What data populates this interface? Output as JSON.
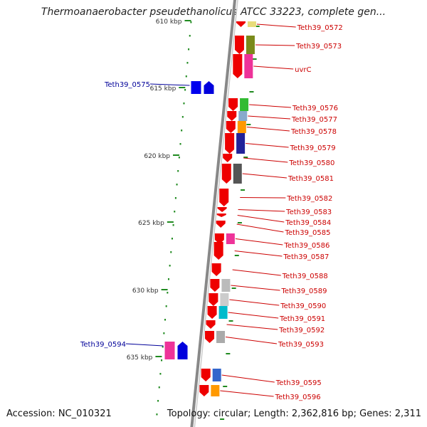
{
  "title": "Thermoanaerobacter pseudethanolicus ATCC 33223, complete gen...",
  "footer": {
    "accession": "Accession: NC_010321",
    "topology": "Topology: circular; Length: 2,362,816 bp; Genes: 2,311"
  },
  "colors": {
    "backbone": "#888888",
    "ruler_dots": "#1f8a1f",
    "forward_gene": "#ee0000",
    "reverse_gene": "#0000dd",
    "forward_label": "#cc0000",
    "reverse_label": "#000099",
    "ticks": "#333333"
  },
  "ruler_labels": [
    "610 kbp",
    "615 kbp",
    "620 kbp",
    "625 kbp",
    "630 kbp",
    "635 kbp"
  ],
  "forward_genes": [
    {
      "label": "Teth39_0572",
      "cog": "#e8dc7a"
    },
    {
      "label": "Teth39_0573",
      "cog": "#7a8a1a"
    },
    {
      "label": "uvrC",
      "cog": "#ee3399"
    },
    {
      "label": "Teth39_0576",
      "cog": "#33bb33"
    },
    {
      "label": "Teth39_0577",
      "cog": "#88aacc"
    },
    {
      "label": "Teth39_0578",
      "cog": "#ff9900"
    },
    {
      "label": "Teth39_0579",
      "cog": "#222299"
    },
    {
      "label": "Teth39_0580",
      "cog": "#ffffff"
    },
    {
      "label": "Teth39_0581",
      "cog": "#555555"
    },
    {
      "label": "Teth39_0582",
      "cog": "#ffffff"
    },
    {
      "label": "Teth39_0583",
      "cog": "#ffffff"
    },
    {
      "label": "Teth39_0584",
      "cog": "#ffffff"
    },
    {
      "label": "Teth39_0585",
      "cog": "#ffffff"
    },
    {
      "label": "Teth39_0586",
      "cog": "#ee3399"
    },
    {
      "label": "Teth39_0587",
      "cog": "#ffffff"
    },
    {
      "label": "Teth39_0588",
      "cog": "#ffffff"
    },
    {
      "label": "Teth39_0589",
      "cog": "#bbbbbb"
    },
    {
      "label": "Teth39_0590",
      "cog": "#cccccc"
    },
    {
      "label": "Teth39_0591",
      "cog": "#00bbcc"
    },
    {
      "label": "Teth39_0592",
      "cog": "#ffffff"
    },
    {
      "label": "Teth39_0593",
      "cog": "#aaaaaa"
    },
    {
      "label": "Teth39_0595",
      "cog": "#3366cc"
    },
    {
      "label": "Teth39_0596",
      "cog": "#ff9900"
    }
  ],
  "reverse_genes": [
    {
      "label": "Teth39_0575",
      "cog": "#0000ee"
    },
    {
      "label": "Teth39_0594",
      "cog": "#ee3399"
    }
  ]
}
